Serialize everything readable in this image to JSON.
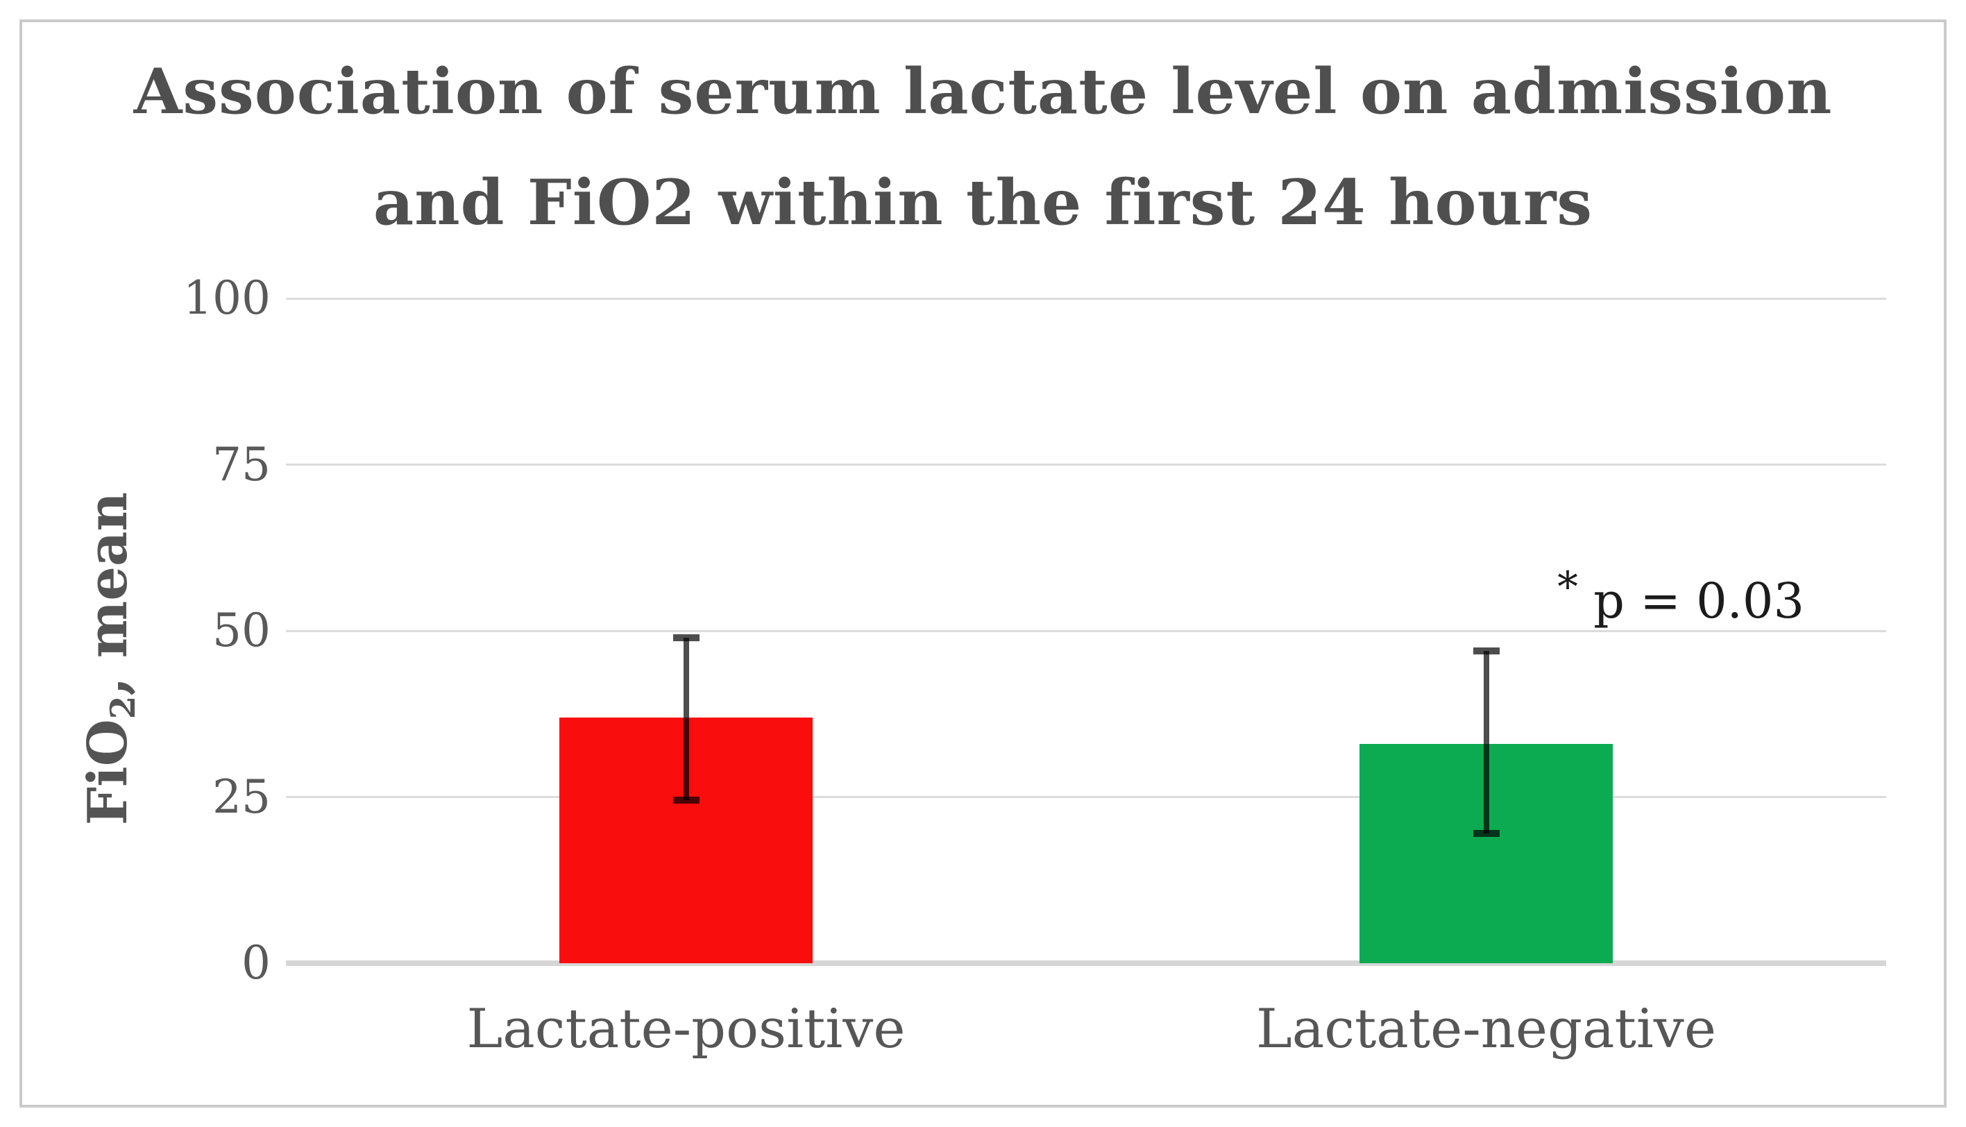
{
  "figure": {
    "title_line1": "Association of serum lactate level on admission",
    "title_line2": "and FiO2 within the first 24 hours"
  },
  "y_axis": {
    "label_prefix": "FiO",
    "label_subscript": "2",
    "label_suffix": ", mean"
  },
  "annotation": {
    "marker": "*",
    "text": "p = 0.03"
  },
  "colors": {
    "bar_lactate_positive": "#f90d0d",
    "bar_lactate_negative": "#0cab51",
    "error_bar": "#4d4d4d",
    "gridline": "#dcdcdc",
    "axis_text": "#595959",
    "title_text": "#4f4f4f",
    "annotation_text": "#1b1b1b",
    "figure_border": "#cbcbcb"
  },
  "chart_data": {
    "type": "bar",
    "title": "Association of serum lactate level on admission and FiO2 within the first 24 hours",
    "xlabel": "",
    "ylabel": "FiO2, mean",
    "ylim": [
      0,
      100
    ],
    "yticks": [
      0,
      25,
      50,
      75,
      100
    ],
    "grid": true,
    "legend": false,
    "categories": [
      "Lactate-positive",
      "Lactate-negative"
    ],
    "values": [
      37,
      33
    ],
    "error_bars": [
      {
        "upper": 49,
        "lower": 24.5
      },
      {
        "upper": 47,
        "lower": 19.5
      }
    ],
    "bar_colors": [
      "#f90d0d",
      "#0cab51"
    ],
    "annotation": "* p = 0.03"
  }
}
